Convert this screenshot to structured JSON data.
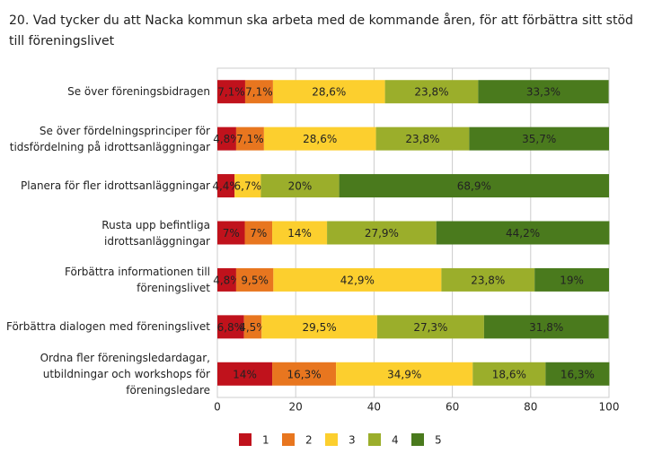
{
  "chart_data": {
    "type": "stacked-barh",
    "title": "20. Vad tycker du att Nacka kommun ska arbeta med de kommande åren, för att förbättra sitt stöd till föreningslivet",
    "categories": [
      "Se över föreningsbidragen",
      "Se över fördelningsprinciper för tidsfördelning på idrottsanläggningar",
      "Planera för fler idrottsanläggningar",
      "Rusta upp befintliga idrottsanläggningar",
      "Förbättra informationen till föreningslivet",
      "Förbättra dialogen med föreningslivet",
      "Ordna fler föreningsledardagar, utbildningar och workshops för föreningsledare"
    ],
    "series": [
      {
        "name": "1",
        "color": "#c0121c",
        "values": [
          7.1,
          4.8,
          4.4,
          7,
          4.8,
          6.8,
          14
        ],
        "value_labels": [
          "7,1%",
          "4,8%",
          "4,4%",
          "7%",
          "4,8%",
          "6,8%",
          "14%"
        ]
      },
      {
        "name": "2",
        "color": "#e8761f",
        "values": [
          7.1,
          7.1,
          0,
          7,
          9.5,
          4.5,
          16.3
        ],
        "value_labels": [
          "7,1%",
          "7,1%",
          null,
          "7%",
          "9,5%",
          "4,5%",
          "16,3%"
        ]
      },
      {
        "name": "3",
        "color": "#fccf2e",
        "values": [
          28.6,
          28.6,
          6.7,
          14,
          42.9,
          29.5,
          34.9
        ],
        "value_labels": [
          "28,6%",
          "28,6%",
          "6,7%",
          "14%",
          "42,9%",
          "29,5%",
          "34,9%"
        ]
      },
      {
        "name": "4",
        "color": "#9bae2b",
        "values": [
          23.8,
          23.8,
          20,
          27.9,
          23.8,
          27.3,
          18.6
        ],
        "value_labels": [
          "23,8%",
          "23,8%",
          "20%",
          "27,9%",
          "23,8%",
          "27,3%",
          "18,6%"
        ]
      },
      {
        "name": "5",
        "color": "#4a7a1d",
        "values": [
          33.3,
          35.7,
          68.9,
          44.2,
          19,
          31.8,
          16.3
        ],
        "value_labels": [
          "33,3%",
          "35,7%",
          "68,9%",
          "44,2%",
          "19%",
          "31,8%",
          "16,3%"
        ]
      }
    ],
    "xlim": [
      0,
      100
    ],
    "xticks": [
      0,
      20,
      40,
      60,
      80,
      100
    ],
    "grid": true,
    "legend": "bottom"
  }
}
